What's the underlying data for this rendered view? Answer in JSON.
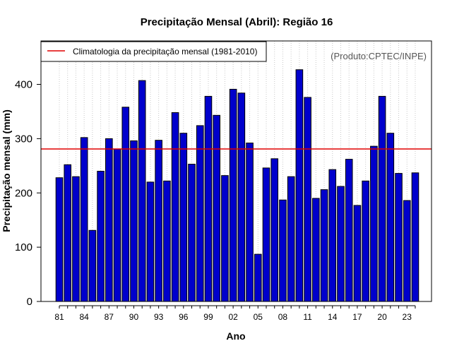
{
  "chart_data": {
    "type": "bar",
    "title": "Precipitação Mensal (Abril): Região 16",
    "xlabel": "Ano",
    "ylabel": "Precipitação mensal (mm)",
    "ylim": [
      0,
      480
    ],
    "yticks": [
      0,
      100,
      200,
      300,
      400
    ],
    "source_note": "(Produto:CPTEC/INPE)",
    "categories": [
      "1981",
      "1982",
      "1983",
      "1984",
      "1985",
      "1986",
      "1987",
      "1988",
      "1989",
      "1990",
      "1991",
      "1992",
      "1993",
      "1994",
      "1995",
      "1996",
      "1997",
      "1998",
      "1999",
      "2000",
      "2001",
      "2002",
      "2003",
      "2004",
      "2005",
      "2006",
      "2007",
      "2008",
      "2009",
      "2010",
      "2011",
      "2012",
      "2013",
      "2014",
      "2015",
      "2016",
      "2017",
      "2018",
      "2019",
      "2020",
      "2021",
      "2022",
      "2023",
      "2024"
    ],
    "xtick_labels": [
      "81",
      "84",
      "87",
      "90",
      "93",
      "96",
      "99",
      "02",
      "05",
      "08",
      "11",
      "14",
      "17",
      "20",
      "23"
    ],
    "xtick_step": 3,
    "values": [
      228,
      252,
      230,
      302,
      131,
      240,
      300,
      281,
      358,
      296,
      407,
      220,
      297,
      222,
      348,
      310,
      253,
      324,
      378,
      343,
      232,
      391,
      384,
      292,
      87,
      246,
      263,
      187,
      230,
      427,
      376,
      190,
      206,
      243,
      212,
      262,
      177,
      222,
      286,
      378,
      310,
      236,
      186,
      237
    ],
    "climatology": {
      "label": "Climatologia da precipitação mensal (1981-2010)",
      "value": 281,
      "color": "#e00000"
    },
    "bar_color": "#0000cc",
    "bar_edge_color": "#000000",
    "grid": true,
    "legend_position": "top-left"
  }
}
